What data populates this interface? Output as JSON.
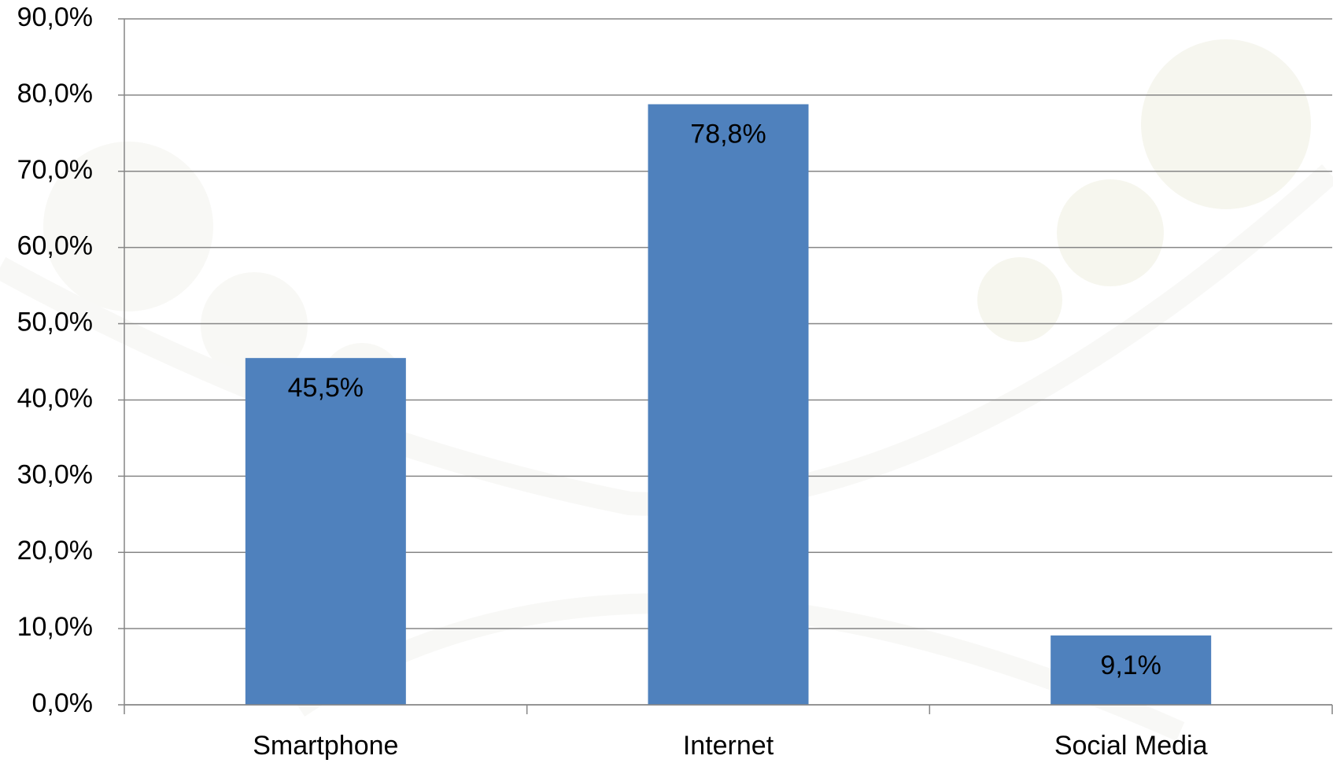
{
  "chart_data": {
    "type": "bar",
    "categories": [
      "Smartphone",
      "Internet",
      "Social Media"
    ],
    "values": [
      45.5,
      78.8,
      9.1
    ],
    "value_labels": [
      "45,5%",
      "78,8%",
      "9,1%"
    ],
    "color": "#4f81bd",
    "ylim": [
      0,
      90
    ],
    "yticks": [
      {
        "value": 0,
        "label": "0,0%"
      },
      {
        "value": 10,
        "label": "10,0%"
      },
      {
        "value": 20,
        "label": "20,0%"
      },
      {
        "value": 30,
        "label": "30,0%"
      },
      {
        "value": 40,
        "label": "40,0%"
      },
      {
        "value": 50,
        "label": "50,0%"
      },
      {
        "value": 60,
        "label": "60,0%"
      },
      {
        "value": 70,
        "label": "70,0%"
      },
      {
        "value": 80,
        "label": "80,0%"
      },
      {
        "value": 90,
        "label": "90,0%"
      }
    ],
    "grid": true
  }
}
